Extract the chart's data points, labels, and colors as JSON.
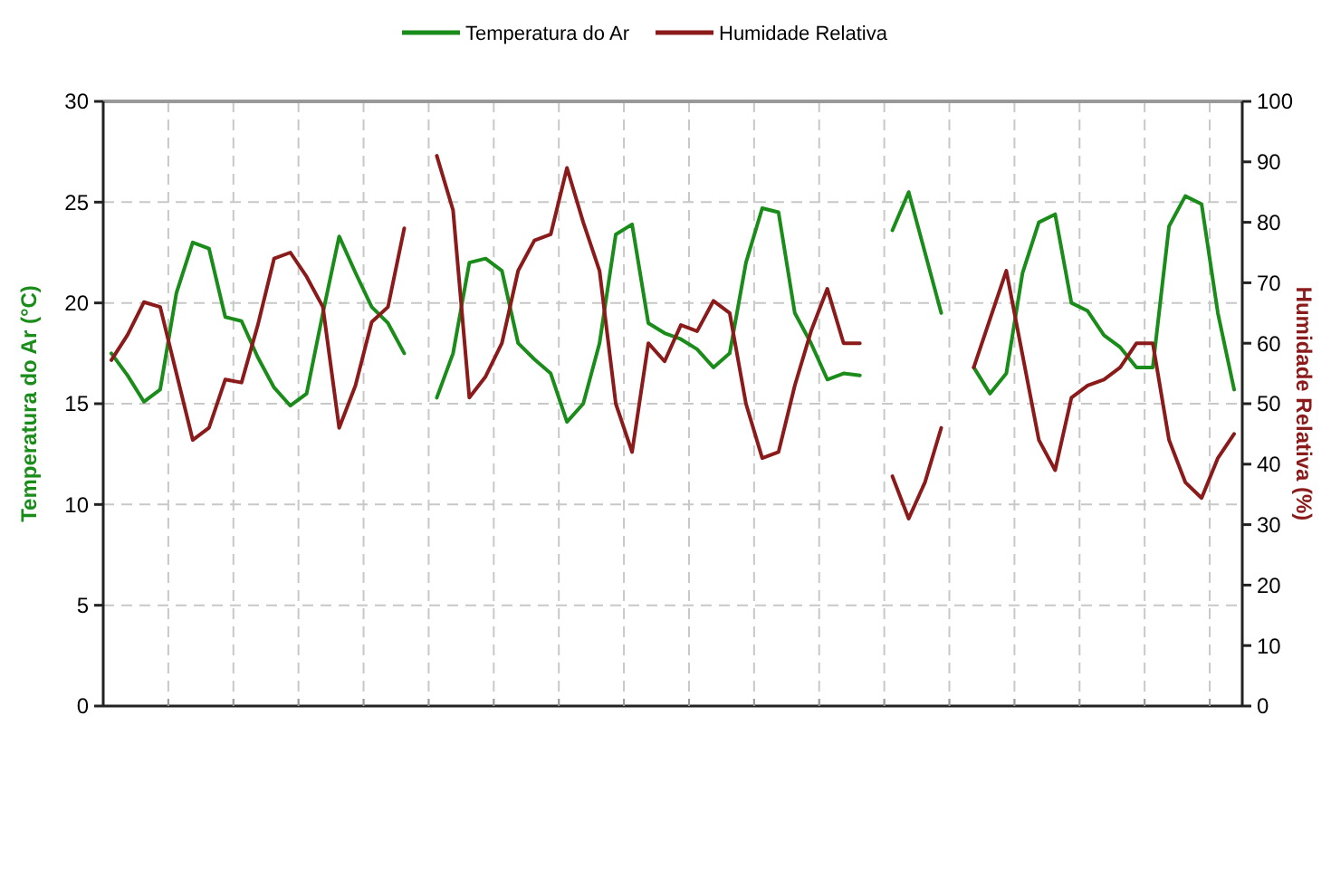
{
  "chart_data": {
    "type": "line",
    "xlabel": null,
    "ylabel": "Temperatura do Ar (°C)",
    "y2label": "Humidade Relativa (%)",
    "categories": [
      null,
      null,
      null,
      null,
      null,
      null,
      null,
      null,
      null,
      null,
      null,
      null,
      null,
      null,
      null,
      null,
      null,
      null,
      null,
      null,
      null,
      null,
      null,
      null,
      null,
      null,
      null,
      null,
      null,
      null,
      null,
      null,
      null,
      null,
      null,
      null,
      null,
      null,
      null,
      null,
      null,
      null,
      null,
      null,
      null,
      null,
      null,
      null,
      null,
      null,
      null,
      null,
      null,
      null,
      null,
      null,
      null,
      null,
      null,
      null,
      null,
      null,
      null,
      null,
      null,
      null,
      null,
      null,
      null,
      null
    ],
    "series": [
      {
        "name": "Temperatura do Ar",
        "color": "#1a8c1a",
        "values": [
          17.5,
          16.4,
          15.1,
          15.7,
          20.5,
          23.0,
          22.7,
          19.3,
          19.1,
          17.3,
          15.8,
          14.9,
          15.5,
          19.5,
          23.3,
          21.5,
          19.8,
          19.0,
          17.5,
          null,
          15.3,
          17.5,
          22.0,
          22.2,
          21.6,
          18.0,
          17.2,
          16.5,
          14.1,
          15.0,
          18.0,
          23.4,
          23.9,
          19.0,
          18.5,
          18.2,
          17.7,
          16.8,
          17.5,
          22.0,
          24.7,
          24.5,
          19.5,
          18.0,
          16.2,
          16.5,
          16.4,
          null,
          23.6,
          25.5,
          22.5,
          19.5,
          null,
          16.8,
          15.5,
          16.5,
          21.5,
          24.0,
          24.4,
          20.0,
          19.6,
          18.4,
          17.8,
          16.8,
          16.8,
          23.8,
          25.3,
          24.9,
          19.5,
          15.7
        ]
      },
      {
        "name": "Humidade Relativa",
        "color": "#8b1a1a",
        "axis": "y2",
        "values": [
          57.2,
          61.4,
          66.8,
          66.0,
          55,
          44,
          46,
          54,
          53.5,
          63,
          74,
          75,
          71,
          66,
          46,
          53,
          63.5,
          66,
          79,
          null,
          91,
          82,
          51,
          54.5,
          60,
          72,
          77,
          78,
          89,
          80,
          72,
          50,
          42,
          60,
          57,
          63,
          62,
          67,
          65,
          50,
          41,
          42,
          53,
          62,
          69,
          60,
          60,
          null,
          38,
          31,
          37,
          46,
          null,
          56,
          64,
          72,
          58,
          44,
          39,
          51,
          53,
          54,
          56,
          60,
          60,
          44,
          37,
          34.4,
          41,
          45
        ]
      }
    ],
    "ylim": [
      0,
      30
    ],
    "yticks": [
      0,
      5,
      10,
      15,
      20,
      25,
      30
    ],
    "y2lim": [
      0,
      100
    ],
    "y2ticks": [
      0,
      10,
      20,
      30,
      40,
      50,
      60,
      70,
      80,
      90,
      100
    ],
    "grid": true,
    "legend": "top",
    "line_style": "solid",
    "marker": "none"
  }
}
